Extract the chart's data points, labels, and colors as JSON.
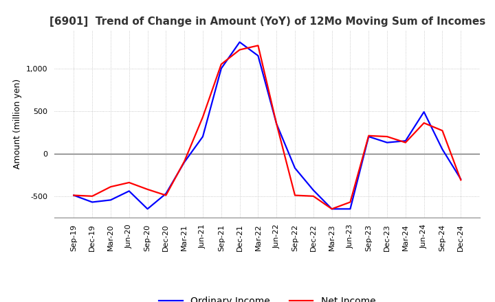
{
  "title": "[6901]  Trend of Change in Amount (YoY) of 12Mo Moving Sum of Incomes",
  "ylabel": "Amount (million yen)",
  "title_fontsize": 11,
  "label_fontsize": 9,
  "tick_fontsize": 8,
  "background_color": "#ffffff",
  "grid_color": "#bbbbbb",
  "x_labels": [
    "Sep-19",
    "Dec-19",
    "Mar-20",
    "Jun-20",
    "Sep-20",
    "Dec-20",
    "Mar-21",
    "Jun-21",
    "Sep-21",
    "Dec-21",
    "Mar-22",
    "Jun-22",
    "Sep-22",
    "Dec-22",
    "Mar-23",
    "Jun-23",
    "Sep-23",
    "Dec-23",
    "Mar-24",
    "Jun-24",
    "Sep-24",
    "Dec-24"
  ],
  "ordinary_income": [
    -490,
    -570,
    -545,
    -440,
    -650,
    -470,
    -100,
    200,
    1000,
    1310,
    1150,
    350,
    -170,
    -430,
    -650,
    -650,
    200,
    130,
    150,
    490,
    50,
    -300
  ],
  "net_income": [
    -490,
    -500,
    -390,
    -340,
    -420,
    -490,
    -90,
    430,
    1050,
    1220,
    1270,
    350,
    -490,
    -500,
    -650,
    -570,
    210,
    200,
    130,
    360,
    270,
    -310
  ],
  "ordinary_color": "#0000ff",
  "net_color": "#ff0000",
  "ylim": [
    -750,
    1450
  ],
  "yticks": [
    -500,
    0,
    500,
    1000
  ],
  "line_width": 1.6
}
